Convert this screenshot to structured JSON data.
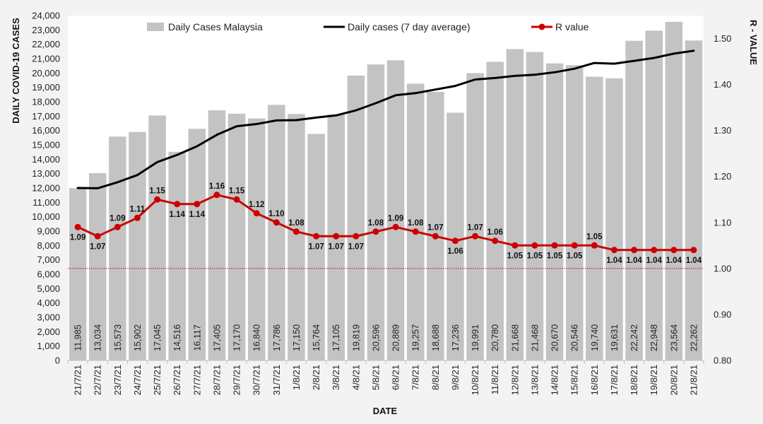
{
  "chart_data": {
    "type": "bar",
    "categories": [
      "21/7/21",
      "22/7/21",
      "23/7/21",
      "24/7/21",
      "25/7/21",
      "26/7/21",
      "27/7/21",
      "28/7/21",
      "29/7/21",
      "30/7/21",
      "31/7/21",
      "1/8/21",
      "2/8/21",
      "3/8/21",
      "4/8/21",
      "5/8/21",
      "6/8/21",
      "7/8/21",
      "8/8/21",
      "9/8/21",
      "10/8/21",
      "11/8/21",
      "12/8/21",
      "13/8/21",
      "14/8/21",
      "15/8/21",
      "16/8/21",
      "17/8/21",
      "18/8/21",
      "19/8/21",
      "20/8/21",
      "21/8/21"
    ],
    "series": [
      {
        "name": "Daily Cases Malaysia",
        "type": "bar",
        "axis": "left",
        "color": "#c3c3c3",
        "values": [
          11985,
          13034,
          15573,
          15902,
          17045,
          14516,
          16117,
          17405,
          17170,
          16840,
          17786,
          17150,
          15764,
          17105,
          19819,
          20596,
          20889,
          19257,
          18688,
          17236,
          19991,
          20780,
          21668,
          21468,
          20670,
          20546,
          19740,
          19631,
          22242,
          22948,
          23564,
          22262
        ],
        "labels": [
          "11,985",
          "13,034",
          "15,573",
          "15,902",
          "17,045",
          "14,516",
          "16,117",
          "17,405",
          "17,170",
          "16,840",
          "17,786",
          "17,150",
          "15,764",
          "17,105",
          "19,819",
          "20,596",
          "20,889",
          "19,257",
          "18,688",
          "17,236",
          "19,991",
          "20,780",
          "21,668",
          "21,468",
          "20,670",
          "20,546",
          "19,740",
          "19,631",
          "22,242",
          "22,948",
          "23,564",
          "22,262"
        ]
      },
      {
        "name": "Daily cases (7 day average)",
        "type": "line",
        "axis": "left",
        "color": "#000000",
        "values": [
          12000,
          11980,
          12400,
          12900,
          13800,
          14300,
          14900,
          15700,
          16300,
          16450,
          16700,
          16720,
          16900,
          17050,
          17400,
          17900,
          18450,
          18600,
          18850,
          19100,
          19550,
          19650,
          19800,
          19880,
          20050,
          20300,
          20700,
          20650,
          20850,
          21050,
          21350,
          21550
        ]
      },
      {
        "name": "R value",
        "type": "line",
        "axis": "right",
        "color": "#cc0000",
        "values": [
          1.09,
          1.07,
          1.09,
          1.11,
          1.15,
          1.14,
          1.14,
          1.16,
          1.15,
          1.12,
          1.1,
          1.08,
          1.07,
          1.07,
          1.07,
          1.08,
          1.09,
          1.08,
          1.07,
          1.06,
          1.07,
          1.06,
          1.05,
          1.05,
          1.05,
          1.05,
          1.05,
          1.04,
          1.04,
          1.04,
          1.04,
          1.04
        ],
        "labels": [
          "1.09",
          "1.07",
          "1.09",
          "1.11",
          "1.15",
          "1.14",
          "1.14",
          "1.16",
          "1.15",
          "1.12",
          "1.10",
          "1.08",
          "1.07",
          "1.07",
          "1.07",
          "1.08",
          "1.09",
          "1.08",
          "1.07",
          "1.06",
          "1.07",
          "1.06",
          "1.05",
          "1.05",
          "1.05",
          "1.05",
          "1.05",
          "1.04",
          "1.04",
          "1.04",
          "1.04",
          "1.04"
        ]
      }
    ],
    "reference_line": {
      "axis": "right",
      "value": 1.0,
      "color": "#cc0000",
      "style": "dotted"
    },
    "xlabel": "DATE",
    "ylabel": "DAILY COVID-19 CASES",
    "y2label": "R - VALUE",
    "ylim": [
      0,
      24000
    ],
    "yticks": [
      0,
      1000,
      2000,
      3000,
      4000,
      5000,
      6000,
      7000,
      8000,
      9000,
      10000,
      11000,
      12000,
      13000,
      14000,
      15000,
      16000,
      17000,
      18000,
      19000,
      20000,
      21000,
      22000,
      23000,
      24000
    ],
    "ytick_labels": [
      "0",
      "1,000",
      "2,000",
      "3,000",
      "4,000",
      "5,000",
      "6,000",
      "7,000",
      "8,000",
      "9,000",
      "10,000",
      "11,000",
      "12,000",
      "13,000",
      "14,000",
      "15,000",
      "16,000",
      "17,000",
      "18,000",
      "19,000",
      "20,000",
      "21,000",
      "22,000",
      "23,000",
      "24,000"
    ],
    "y2lim": [
      0.8,
      1.55
    ],
    "y2ticks": [
      0.8,
      0.9,
      1.0,
      1.1,
      1.2,
      1.3,
      1.4,
      1.5
    ],
    "y2tick_labels": [
      "0.80",
      "0.90",
      "1.00",
      "1.10",
      "1.20",
      "1.30",
      "1.40",
      "1.50"
    ],
    "grid": false,
    "legend_position": "top"
  }
}
